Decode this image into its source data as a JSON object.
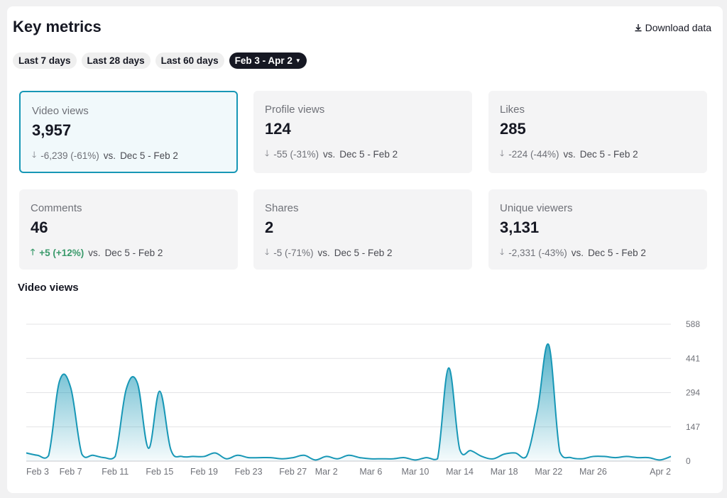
{
  "header": {
    "title": "Key metrics",
    "download_label": "Download data"
  },
  "ranges": [
    {
      "label": "Last 7 days",
      "active": false
    },
    {
      "label": "Last 28 days",
      "active": false
    },
    {
      "label": "Last 60 days",
      "active": false
    },
    {
      "label": "Feb 3 - Apr 2",
      "active": true
    }
  ],
  "metrics": [
    {
      "label": "Video views",
      "value": "3,957",
      "direction": "down",
      "change": "-6,239 (-61%)",
      "vs": "vs.",
      "period": "Dec 5 - Feb 2",
      "selected": true
    },
    {
      "label": "Profile views",
      "value": "124",
      "direction": "down",
      "change": "-55 (-31%)",
      "vs": "vs.",
      "period": "Dec 5 - Feb 2",
      "selected": false
    },
    {
      "label": "Likes",
      "value": "285",
      "direction": "down",
      "change": "-224 (-44%)",
      "vs": "vs.",
      "period": "Dec 5 - Feb 2",
      "selected": false
    },
    {
      "label": "Comments",
      "value": "46",
      "direction": "up",
      "change": "+5 (+12%)",
      "vs": "vs.",
      "period": "Dec 5 - Feb 2",
      "selected": false
    },
    {
      "label": "Shares",
      "value": "2",
      "direction": "down",
      "change": "-5 (-71%)",
      "vs": "vs.",
      "period": "Dec 5 - Feb 2",
      "selected": false
    },
    {
      "label": "Unique viewers",
      "value": "3,131",
      "direction": "down",
      "change": "-2,331 (-43%)",
      "vs": "vs.",
      "period": "Dec 5 - Feb 2",
      "selected": false
    }
  ],
  "colors": {
    "accent": "#1797b6",
    "up": "#3a9a6b",
    "down": "#6f7178"
  },
  "chart_data": {
    "type": "area",
    "title": "Video views",
    "ylim": [
      0,
      588
    ],
    "yticks": [
      "0",
      "147",
      "294",
      "441",
      "588"
    ],
    "xticks": [
      "Feb 3",
      "Feb 7",
      "Feb 11",
      "Feb 15",
      "Feb 19",
      "Feb 23",
      "Feb 27",
      "Mar 2",
      "Mar 6",
      "Mar 10",
      "Mar 14",
      "Mar 18",
      "Mar 22",
      "Mar 26",
      "Apr 2"
    ],
    "x": [
      "Feb 3",
      "Feb 4",
      "Feb 5",
      "Feb 6",
      "Feb 7",
      "Feb 8",
      "Feb 9",
      "Feb 10",
      "Feb 11",
      "Feb 12",
      "Feb 13",
      "Feb 14",
      "Feb 15",
      "Feb 16",
      "Feb 17",
      "Feb 18",
      "Feb 19",
      "Feb 20",
      "Feb 21",
      "Feb 22",
      "Feb 23",
      "Feb 24",
      "Feb 25",
      "Feb 26",
      "Feb 27",
      "Feb 28",
      "Mar 1",
      "Mar 2",
      "Mar 3",
      "Mar 4",
      "Mar 5",
      "Mar 6",
      "Mar 7",
      "Mar 8",
      "Mar 9",
      "Mar 10",
      "Mar 11",
      "Mar 12",
      "Mar 13",
      "Mar 14",
      "Mar 15",
      "Mar 16",
      "Mar 17",
      "Mar 18",
      "Mar 19",
      "Mar 20",
      "Mar 21",
      "Mar 22",
      "Mar 23",
      "Mar 24",
      "Mar 25",
      "Mar 26",
      "Mar 27",
      "Mar 28",
      "Mar 29",
      "Mar 30",
      "Mar 31",
      "Apr 1",
      "Apr 2"
    ],
    "values": [
      35,
      25,
      23,
      345,
      315,
      30,
      25,
      15,
      20,
      310,
      335,
      55,
      300,
      50,
      20,
      20,
      20,
      35,
      10,
      25,
      15,
      15,
      15,
      10,
      15,
      25,
      5,
      20,
      10,
      25,
      15,
      10,
      10,
      10,
      15,
      5,
      15,
      10,
      400,
      50,
      45,
      20,
      10,
      30,
      35,
      20,
      220,
      500,
      40,
      15,
      10,
      20,
      20,
      15,
      20,
      15,
      15,
      5,
      20
    ],
    "grid": true,
    "legend": "none"
  }
}
